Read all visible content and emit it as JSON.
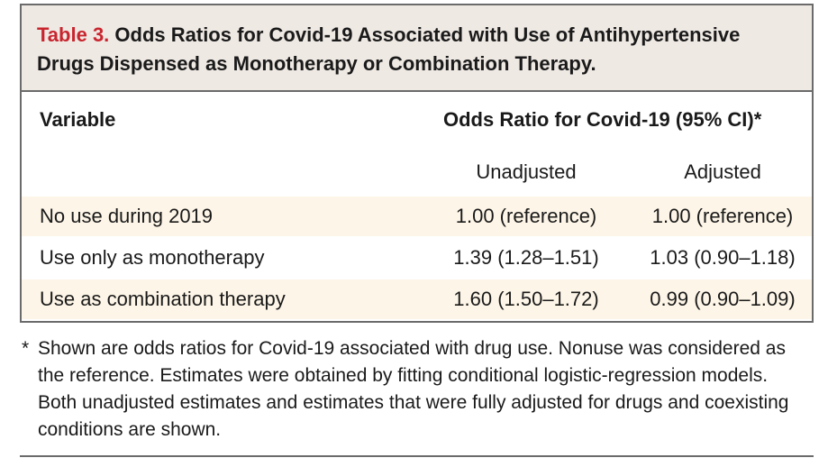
{
  "table": {
    "title_label": "Table 3.",
    "title_text": " Odds Ratios for Covid-19 Associated with Use of Antihypertensive Drugs Dispensed as Monotherapy or Combination Therapy.",
    "header": {
      "variable": "Variable",
      "odds_ratio": "Odds Ratio for Covid-19 (95% CI)*",
      "unadjusted": "Unadjusted",
      "adjusted": "Adjusted"
    },
    "rows": [
      {
        "label": "No use during 2019",
        "unadjusted": "1.00 (reference)",
        "adjusted": "1.00 (reference)"
      },
      {
        "label": "Use only as monotherapy",
        "unadjusted": "1.39 (1.28–1.51)",
        "adjusted": "1.03 (0.90–1.18)"
      },
      {
        "label": "Use as combination therapy",
        "unadjusted": "1.60 (1.50–1.72)",
        "adjusted": "0.99 (0.90–1.09)"
      }
    ],
    "footnote_mark": "*",
    "footnote": "Shown are odds ratios for Covid-19 associated with drug use. Nonuse was considered as the reference. Estimates were obtained by fitting conditional logistic-regression models. Both unadjusted estimates and estimates that were fully adjusted for drugs and coexisting conditions are shown."
  },
  "colors": {
    "title_label": "#c8262f",
    "title_background": "#efe9e4",
    "row_shading": "#fdf5e7",
    "border": "#6b6b6b"
  }
}
